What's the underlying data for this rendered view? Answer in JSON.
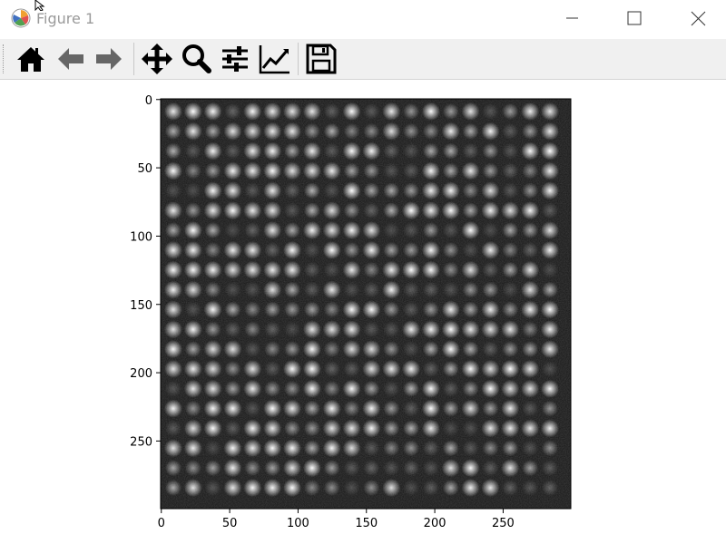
{
  "window": {
    "title": "Figure 1"
  },
  "toolbar": {
    "buttons": [
      "home-icon",
      "back-arrow-icon",
      "forward-arrow-icon",
      "pan-icon",
      "zoom-icon",
      "configure-subplots-icon",
      "edit-axes-icon",
      "save-icon"
    ]
  },
  "chart_data": {
    "type": "heatmap",
    "description_shown": "grayscale image of a grid of bright spots",
    "colormap": "gray",
    "x_ticks": [
      "0",
      "50",
      "100",
      "150",
      "200",
      "250"
    ],
    "y_ticks": [
      "0",
      "50",
      "100",
      "150",
      "200",
      "250"
    ],
    "xlim": [
      0,
      299
    ],
    "ylim": [
      299,
      0
    ],
    "grid_spacing": 14.5,
    "grid_size": [
      20,
      20
    ]
  }
}
